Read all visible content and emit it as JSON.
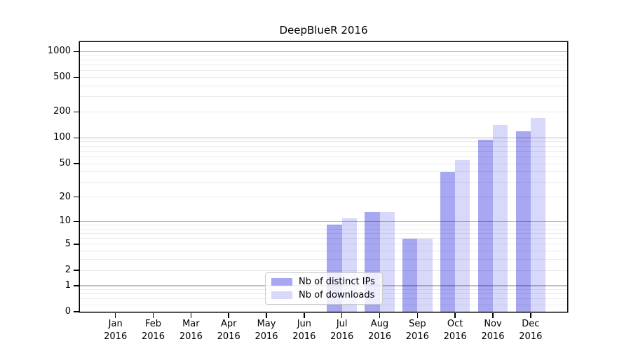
{
  "chart_data": {
    "type": "bar",
    "title": "DeepBlueR 2016",
    "x_categories_month": [
      "Jan",
      "Feb",
      "Mar",
      "Apr",
      "May",
      "Jun",
      "Jul",
      "Aug",
      "Sep",
      "Oct",
      "Nov",
      "Dec"
    ],
    "x_categories_year": "2016",
    "series": [
      {
        "name": "Nb of distinct IPs",
        "color": "#a7a7f2",
        "values": [
          0,
          0,
          0,
          0,
          0,
          0,
          9,
          13,
          6,
          40,
          95,
          120
        ]
      },
      {
        "name": "Nb of downloads",
        "color": "#d8d8fa",
        "values": [
          0,
          0,
          0,
          0,
          0,
          0,
          11,
          13,
          6,
          55,
          140,
          172
        ]
      }
    ],
    "yscale": "log1p",
    "ylim": [
      0,
      1282
    ],
    "ytick_labels": [
      0,
      1,
      2,
      5,
      10,
      20,
      50,
      100,
      200,
      500,
      1000
    ],
    "grid_major": [
      1,
      10,
      100,
      1000
    ],
    "grid_minor": [
      0.2,
      0.4,
      0.6,
      0.8,
      2,
      3,
      4,
      5,
      6,
      7,
      8,
      9,
      20,
      30,
      40,
      50,
      60,
      70,
      80,
      90,
      200,
      300,
      400,
      500,
      600,
      700,
      800,
      900
    ],
    "legend_position": "lower center",
    "grid": "on"
  },
  "colors": {
    "grid_major": "rgba(0,0,0,0.26)",
    "grid_minor": "rgba(0,0,0,0.08)",
    "axis": "#000000",
    "bar_distinct_ips": "#a7a7f2",
    "bar_downloads": "#d8d8fa"
  }
}
